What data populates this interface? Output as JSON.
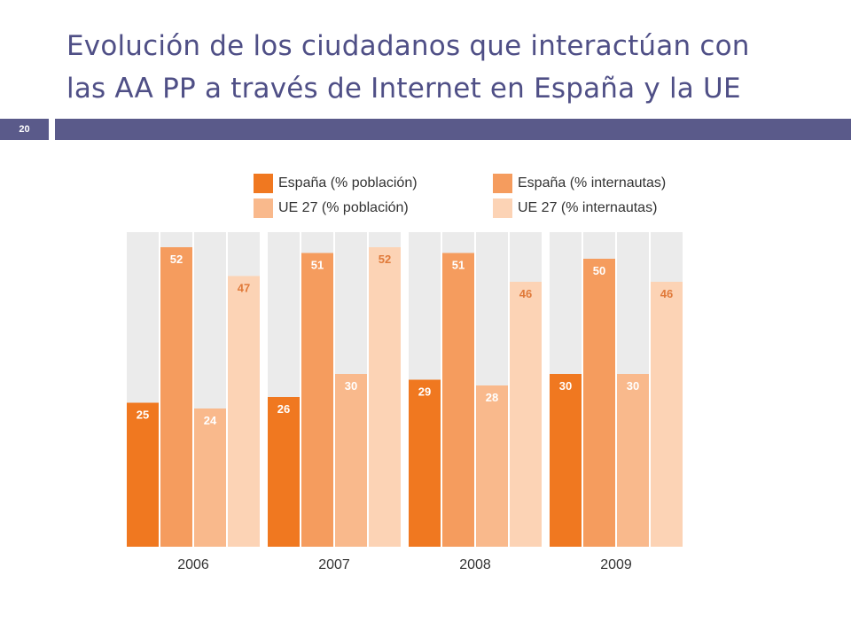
{
  "slide": {
    "title_line1": "Evolución de los ciudadanos que interactúan con",
    "title_line2": "las AA PP a través de Internet en España y la UE",
    "number": "20"
  },
  "colors": {
    "accent": "#5a5a8a",
    "title": "#4f4f86",
    "panel": "#ebebeb"
  },
  "chart_data": {
    "type": "bar",
    "title": "",
    "xlabel": "",
    "ylabel": "",
    "ylim": [
      0,
      55
    ],
    "grid": false,
    "legend_position": "top",
    "categories": [
      "2006",
      "2007",
      "2008",
      "2009"
    ],
    "series": [
      {
        "name": "España (% población)",
        "values": [
          25,
          26,
          29,
          30
        ],
        "color": "#f07820",
        "label_color": "#ffffff"
      },
      {
        "name": "España (% internautas)",
        "values": [
          52,
          51,
          51,
          50
        ],
        "color": "#f59c5e",
        "label_color": "#ffffff"
      },
      {
        "name": "UE 27 (% población)",
        "values": [
          24,
          30,
          28,
          30
        ],
        "color": "#f9b98c",
        "label_color": "#ffffff"
      },
      {
        "name": "UE 27 (% internautas)",
        "values": [
          47,
          52,
          46,
          46
        ],
        "color": "#fcd3b5",
        "label_color": "#e07a3a"
      }
    ]
  }
}
